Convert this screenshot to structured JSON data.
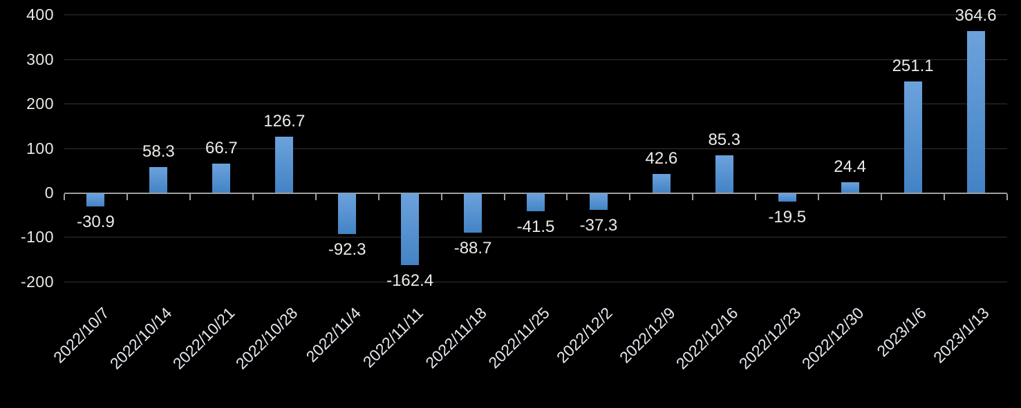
{
  "chart_data": {
    "type": "bar",
    "title": "",
    "xlabel": "",
    "ylabel": "",
    "categories": [
      "2022/10/7",
      "2022/10/14",
      "2022/10/21",
      "2022/10/28",
      "2022/11/4",
      "2022/11/11",
      "2022/11/18",
      "2022/11/25",
      "2022/12/2",
      "2022/12/9",
      "2022/12/16",
      "2022/12/23",
      "2022/12/30",
      "2023/1/6",
      "2023/1/13"
    ],
    "values": [
      -30.9,
      58.3,
      66.7,
      126.7,
      -92.3,
      -162.4,
      -88.7,
      -41.5,
      -37.3,
      42.6,
      85.3,
      -19.5,
      24.4,
      251.1,
      364.6
    ],
    "value_labels": [
      "-30.9",
      "58.3",
      "66.7",
      "126.7",
      "-92.3",
      "-162.4",
      "-88.7",
      "-41.5",
      "-37.3",
      "42.6",
      "85.3",
      "-19.5",
      "24.4",
      "251.1",
      "364.6"
    ],
    "ylim": [
      -200,
      400
    ],
    "yticks": [
      400,
      300,
      200,
      100,
      0,
      -100,
      -200
    ],
    "grid": true,
    "legend_position": "none",
    "data_labels_visible": true,
    "category_label_rotation_deg": -45,
    "colors": {
      "background": "#000000",
      "bar_gradient_top": "#6CA2DC",
      "bar_gradient_bottom": "#4383C5",
      "gridline": "#333333",
      "axis_line": "#A0A0A0",
      "axis_text": "#EAE8E4",
      "value_label_text": "#EDEBE7",
      "category_label_text": "#E4E8ED"
    }
  }
}
